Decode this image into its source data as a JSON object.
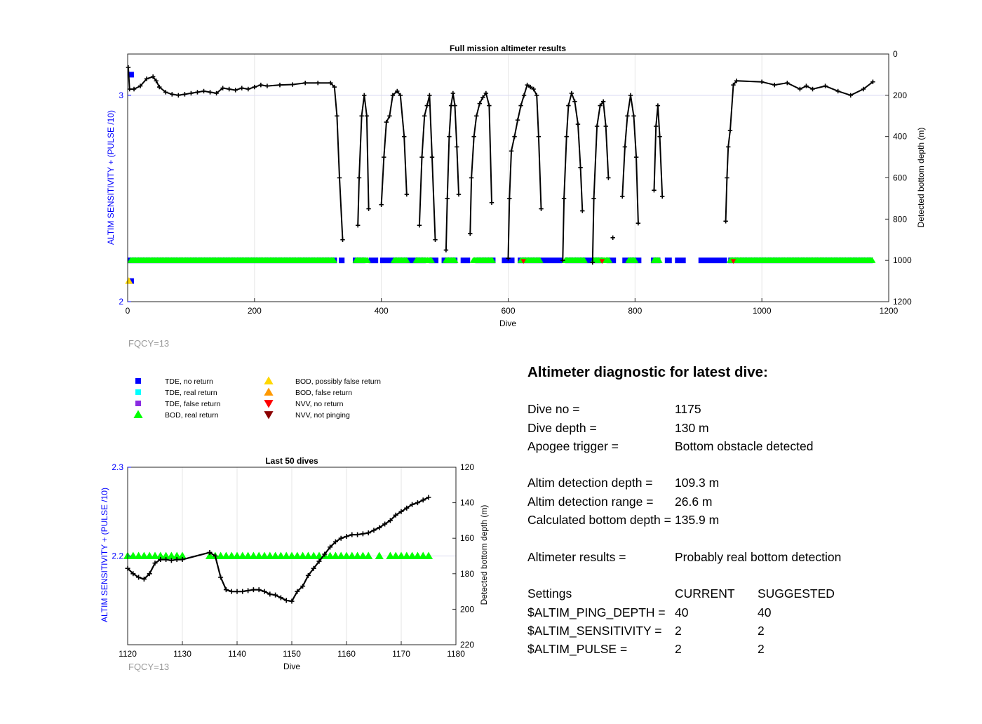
{
  "colors": {
    "tde_no_return": "#0000ff",
    "tde_real_return": "#00ffff",
    "tde_false_return": "#8a2be2",
    "bod_real_return": "#00ff00",
    "bod_possibly_false": "#ffd700",
    "bod_false": "#ff9900",
    "nvv_no_return": "#ff0000",
    "nvv_not_pinging": "#8b0000",
    "left_axis": "#0000ff",
    "depth_line": "#000000"
  },
  "chart_data": [
    {
      "type": "line",
      "title": "Full mission altimeter results",
      "xlabel": "Dive",
      "ylabel_left": "ALTIM SENSITIVITY + (PULSE /10)",
      "ylabel_right": "Detected bottom depth (m)",
      "xlim": [
        0,
        1200
      ],
      "xticks": [
        "0",
        "200",
        "400",
        "600",
        "800",
        "1000",
        "1200"
      ],
      "ylim_left": [
        2,
        3.2
      ],
      "yticks_left": [
        "2",
        "3"
      ],
      "ylim_right": [
        0,
        1200
      ],
      "yticks_right": [
        "0",
        "200",
        "400",
        "600",
        "800",
        "1000",
        "1200"
      ],
      "right_axis_reversed": true,
      "footnote": "FQCY=13",
      "depth_segments": [
        [
          [
            1,
            65
          ],
          [
            3,
            170
          ],
          [
            10,
            170
          ],
          [
            20,
            155
          ],
          [
            30,
            120
          ],
          [
            40,
            110
          ],
          [
            45,
            130
          ],
          [
            50,
            160
          ],
          [
            60,
            185
          ],
          [
            70,
            195
          ],
          [
            80,
            200
          ],
          [
            90,
            195
          ],
          [
            100,
            190
          ],
          [
            110,
            185
          ],
          [
            120,
            180
          ],
          [
            130,
            185
          ],
          [
            140,
            190
          ],
          [
            150,
            165
          ],
          [
            160,
            170
          ],
          [
            170,
            175
          ],
          [
            180,
            165
          ],
          [
            190,
            170
          ],
          [
            200,
            160
          ],
          [
            210,
            150
          ],
          [
            220,
            155
          ],
          [
            240,
            150
          ],
          [
            260,
            148
          ],
          [
            280,
            140
          ],
          [
            300,
            140
          ],
          [
            320,
            140
          ],
          [
            326,
            160
          ],
          [
            330,
            300
          ],
          [
            334,
            600
          ],
          [
            339,
            900
          ]
        ],
        [
          [
            363,
            830
          ],
          [
            365,
            600
          ],
          [
            369,
            300
          ],
          [
            373,
            200
          ],
          [
            377,
            300
          ],
          [
            380,
            750
          ]
        ],
        [
          [
            400,
            730
          ],
          [
            404,
            500
          ],
          [
            408,
            330
          ],
          [
            413,
            300
          ],
          [
            418,
            200
          ],
          [
            425,
            180
          ],
          [
            430,
            200
          ],
          [
            436,
            400
          ],
          [
            440,
            680
          ]
        ],
        [
          [
            460,
            830
          ],
          [
            464,
            500
          ],
          [
            468,
            300
          ],
          [
            472,
            250
          ],
          [
            476,
            200
          ],
          [
            480,
            500
          ],
          [
            485,
            900
          ]
        ],
        [
          [
            502,
            950
          ],
          [
            504,
            700
          ],
          [
            507,
            400
          ],
          [
            510,
            250
          ],
          [
            513,
            190
          ],
          [
            516,
            250
          ],
          [
            519,
            450
          ],
          [
            522,
            680
          ]
        ],
        [
          [
            540,
            870
          ],
          [
            542,
            600
          ],
          [
            546,
            400
          ],
          [
            550,
            300
          ],
          [
            555,
            240
          ],
          [
            560,
            210
          ],
          [
            565,
            190
          ],
          [
            570,
            250
          ],
          [
            574,
            720
          ]
        ],
        [
          [
            600,
            990
          ],
          [
            602,
            700
          ],
          [
            605,
            470
          ],
          [
            610,
            400
          ],
          [
            615,
            320
          ],
          [
            620,
            250
          ],
          [
            625,
            200
          ],
          [
            630,
            150
          ],
          [
            635,
            160
          ],
          [
            640,
            170
          ],
          [
            645,
            200
          ],
          [
            648,
            400
          ],
          [
            652,
            750
          ]
        ],
        [
          [
            686,
            1000
          ],
          [
            688,
            700
          ],
          [
            692,
            400
          ],
          [
            695,
            250
          ],
          [
            700,
            190
          ],
          [
            705,
            230
          ],
          [
            710,
            340
          ],
          [
            714,
            550
          ],
          [
            717,
            760
          ]
        ],
        [
          [
            733,
            1010
          ],
          [
            735,
            700
          ],
          [
            740,
            350
          ],
          [
            745,
            250
          ],
          [
            750,
            230
          ],
          [
            754,
            350
          ],
          [
            758,
            600
          ]
        ],
        [
          [
            765,
            890
          ]
        ],
        [
          [
            780,
            690
          ],
          [
            784,
            450
          ],
          [
            788,
            300
          ],
          [
            793,
            200
          ],
          [
            798,
            300
          ],
          [
            802,
            500
          ],
          [
            805,
            820
          ]
        ],
        [
          [
            830,
            660
          ],
          [
            833,
            350
          ],
          [
            836,
            250
          ],
          [
            839,
            400
          ],
          [
            843,
            690
          ]
        ],
        [
          [
            943,
            810
          ],
          [
            945,
            600
          ],
          [
            947,
            450
          ],
          [
            950,
            370
          ],
          [
            955,
            150
          ],
          [
            960,
            130
          ],
          [
            1000,
            135
          ],
          [
            1020,
            150
          ],
          [
            1040,
            140
          ],
          [
            1060,
            170
          ],
          [
            1070,
            155
          ],
          [
            1080,
            170
          ],
          [
            1100,
            155
          ],
          [
            1120,
            180
          ],
          [
            1140,
            200
          ],
          [
            1160,
            170
          ],
          [
            1175,
            135
          ]
        ]
      ],
      "bod_real_dives_ranges": [
        [
          5,
          325
        ],
        [
          360,
          378
        ],
        [
          420,
          440
        ],
        [
          455,
          480
        ],
        [
          502,
          516
        ],
        [
          545,
          575
        ],
        [
          620,
          650
        ],
        [
          690,
          720
        ],
        [
          735,
          760
        ],
        [
          790,
          800
        ],
        [
          830,
          838
        ],
        [
          950,
          1175
        ]
      ],
      "tde_no_return_ranges": [
        [
          0,
          330
        ],
        [
          333,
          342
        ],
        [
          355,
          375
        ],
        [
          380,
          395
        ],
        [
          398,
          470
        ],
        [
          475,
          490
        ],
        [
          495,
          520
        ],
        [
          525,
          540
        ],
        [
          548,
          580
        ],
        [
          590,
          610
        ],
        [
          615,
          685
        ],
        [
          690,
          750
        ],
        [
          755,
          770
        ],
        [
          780,
          810
        ],
        [
          825,
          840
        ],
        [
          847,
          858
        ],
        [
          863,
          880
        ],
        [
          900,
          945
        ],
        [
          947,
          1175
        ]
      ],
      "bod_possibly_false_points": [
        [
          2,
          2.1
        ]
      ],
      "tde_no_return_points": [
        [
          1,
          3.1
        ],
        [
          1,
          2.1
        ]
      ]
    },
    {
      "type": "line",
      "title": "Last 50 dives",
      "xlabel": "Dive",
      "ylabel_left": "ALTIM SENSITIVITY + (PULSE /10)",
      "ylabel_right": "Detected bottom depth (m)",
      "xlim": [
        1120,
        1180
      ],
      "xticks": [
        "1120",
        "1130",
        "1140",
        "1150",
        "1160",
        "1170",
        "1180"
      ],
      "ylim_left": [
        2.1,
        2.3
      ],
      "yticks_left": [
        "2.2",
        "2.3"
      ],
      "ylim_right": [
        120,
        220
      ],
      "yticks_right": [
        "120",
        "140",
        "160",
        "180",
        "200",
        "220"
      ],
      "right_axis_reversed": true,
      "footnote": "FQCY=13",
      "depth_points": [
        [
          1120,
          177
        ],
        [
          1121,
          180
        ],
        [
          1122,
          182
        ],
        [
          1123,
          183
        ],
        [
          1124,
          180
        ],
        [
          1125,
          174
        ],
        [
          1126,
          172
        ],
        [
          1127,
          172
        ],
        [
          1128,
          172.5
        ],
        [
          1129,
          172
        ],
        [
          1130,
          172
        ],
        [
          1135,
          168
        ],
        [
          1136,
          170
        ],
        [
          1137,
          182
        ],
        [
          1138,
          189
        ],
        [
          1139,
          190
        ],
        [
          1140,
          190
        ],
        [
          1141,
          190
        ],
        [
          1142,
          189.5
        ],
        [
          1143,
          189
        ],
        [
          1144,
          189
        ],
        [
          1145,
          190
        ],
        [
          1146,
          191.5
        ],
        [
          1147,
          192
        ],
        [
          1148,
          193.5
        ],
        [
          1149,
          195
        ],
        [
          1150,
          195.5
        ],
        [
          1151,
          190
        ],
        [
          1152,
          187
        ],
        [
          1153,
          181
        ],
        [
          1154,
          177
        ],
        [
          1155,
          173
        ],
        [
          1156,
          169
        ],
        [
          1157,
          165
        ],
        [
          1158,
          162
        ],
        [
          1159,
          160
        ],
        [
          1160,
          159
        ],
        [
          1161,
          158
        ],
        [
          1162,
          158
        ],
        [
          1163,
          157.5
        ],
        [
          1164,
          157
        ],
        [
          1165,
          155.5
        ],
        [
          1166,
          154
        ],
        [
          1167,
          152
        ],
        [
          1168,
          150
        ],
        [
          1169,
          147
        ],
        [
          1170,
          145
        ],
        [
          1171,
          143
        ],
        [
          1172,
          141
        ],
        [
          1173,
          140
        ],
        [
          1174,
          138.5
        ],
        [
          1175,
          137
        ]
      ],
      "bod_real_dives": [
        1120,
        1121,
        1122,
        1123,
        1124,
        1125,
        1126,
        1127,
        1128,
        1129,
        1130,
        1135,
        1136,
        1137,
        1138,
        1139,
        1140,
        1141,
        1142,
        1143,
        1144,
        1145,
        1146,
        1147,
        1148,
        1149,
        1150,
        1151,
        1152,
        1153,
        1154,
        1155,
        1156,
        1157,
        1158,
        1159,
        1160,
        1161,
        1162,
        1163,
        1164,
        1166,
        1168,
        1169,
        1170,
        1171,
        1172,
        1173,
        1174,
        1175
      ],
      "bod_level": 2.2
    }
  ],
  "legend": [
    {
      "label": "TDE, no return",
      "color": "#0000ff",
      "marker": "square"
    },
    {
      "label": "TDE, real return",
      "color": "#00ffff",
      "marker": "square"
    },
    {
      "label": "TDE, false return",
      "color": "#8a2be2",
      "marker": "square"
    },
    {
      "label": "BOD, real return",
      "color": "#00ff00",
      "marker": "triangle-up"
    },
    {
      "label": "BOD, possibly false return",
      "color": "#ffd700",
      "marker": "triangle-up"
    },
    {
      "label": "BOD, false return",
      "color": "#ff9900",
      "marker": "triangle-up"
    },
    {
      "label": "NVV, no return",
      "color": "#ff0000",
      "marker": "triangle-down"
    },
    {
      "label": "NVV, not pinging",
      "color": "#8b0000",
      "marker": "triangle-down"
    }
  ],
  "diagnostic": {
    "title": "Altimeter diagnostic for latest dive:",
    "dive_no_label": "Dive no =",
    "dive_no": "1175",
    "dive_depth_label": "Dive depth =",
    "dive_depth": "130 m",
    "apogee_label": "Apogee trigger =",
    "apogee": "Bottom obstacle detected",
    "altim_det_depth_label": "Altim detection depth =",
    "altim_det_depth": "109.3 m",
    "altim_det_range_label": "Altim detection range =",
    "altim_det_range": "26.6 m",
    "calc_bottom_label": "Calculated bottom depth =",
    "calc_bottom": "135.9 m",
    "results_label": "Altimeter results =",
    "results": "Probably real bottom detection",
    "settings_label": "Settings",
    "current_label": "CURRENT",
    "suggested_label": "SUGGESTED",
    "ping_depth_label": "$ALTIM_PING_DEPTH =",
    "ping_depth_current": "40",
    "ping_depth_suggested": "40",
    "sensitivity_label": "$ALTIM_SENSITIVITY =",
    "sensitivity_current": "2",
    "sensitivity_suggested": "2",
    "pulse_label": "$ALTIM_PULSE =",
    "pulse_current": "2",
    "pulse_suggested": "2"
  }
}
